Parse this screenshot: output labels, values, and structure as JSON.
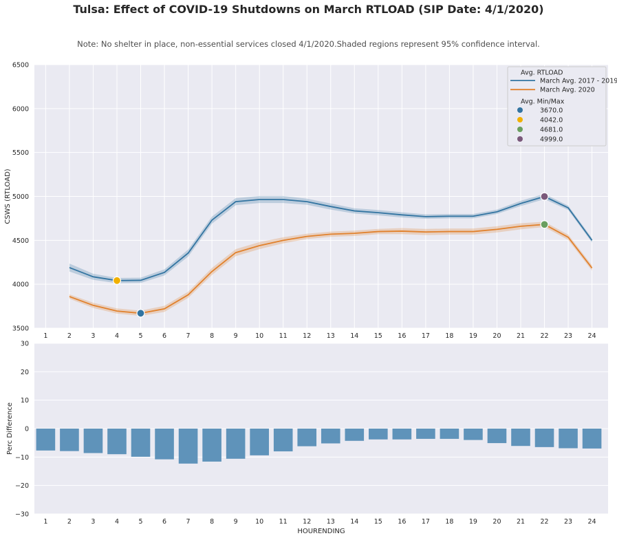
{
  "title": "Tulsa: Effect of COVID-19 Shutdowns on March RTLOAD (SIP Date: 4/1/2020)",
  "note": "Note: No shelter in place, non-essential services closed 4/1/2020.Shaded regions represent 95% confidence interval.",
  "colors": {
    "background": "#eaeaf2",
    "grid": "#ffffff",
    "series_2017_2019": "#3274a1",
    "series_2020": "#e1812c",
    "bars": "#5f93ba",
    "marker_3670": "#3274a1",
    "marker_4042": "#f0b000",
    "marker_4681": "#6a9f5f",
    "marker_4999": "#7a587a"
  },
  "chart_data": [
    {
      "type": "line",
      "title": "",
      "xlabel": "",
      "ylabel": "CSWS (RTLOAD)",
      "categories": [
        "1",
        "2",
        "3",
        "4",
        "5",
        "6",
        "7",
        "8",
        "9",
        "10",
        "11",
        "12",
        "13",
        "14",
        "15",
        "16",
        "17",
        "18",
        "19",
        "20",
        "21",
        "22",
        "23",
        "24"
      ],
      "ylim": [
        3500,
        6500
      ],
      "yticks": [
        3500,
        4000,
        4500,
        5000,
        5500,
        6000,
        6500
      ],
      "grid": true,
      "series": [
        {
          "name": "March Avg. 2017 - 2019",
          "x": [
            2,
            3,
            4,
            5,
            6,
            7,
            8,
            9,
            10,
            11,
            12,
            13,
            14,
            15,
            16,
            17,
            18,
            19,
            20,
            21,
            22,
            23,
            24
          ],
          "values": [
            4190,
            4085,
            4042,
            4045,
            4135,
            4355,
            4730,
            4940,
            4965,
            4965,
            4940,
            4885,
            4835,
            4815,
            4790,
            4770,
            4775,
            4775,
            4825,
            4920,
            4999,
            4870,
            4500
          ],
          "ci": [
            45,
            35,
            30,
            30,
            35,
            40,
            40,
            40,
            40,
            40,
            35,
            35,
            30,
            30,
            30,
            25,
            25,
            25,
            25,
            30,
            30,
            25,
            25
          ]
        },
        {
          "name": "March Avg. 2020",
          "x": [
            2,
            3,
            4,
            5,
            6,
            7,
            8,
            9,
            10,
            11,
            12,
            13,
            14,
            15,
            16,
            17,
            18,
            19,
            20,
            21,
            22,
            23,
            24
          ],
          "values": [
            3860,
            3760,
            3695,
            3670,
            3720,
            3880,
            4145,
            4360,
            4440,
            4500,
            4545,
            4570,
            4580,
            4600,
            4605,
            4595,
            4600,
            4600,
            4625,
            4660,
            4681,
            4535,
            4185
          ],
          "ci": [
            25,
            30,
            30,
            30,
            35,
            35,
            40,
            40,
            40,
            35,
            30,
            30,
            30,
            30,
            35,
            35,
            35,
            35,
            35,
            35,
            30,
            30,
            30
          ]
        }
      ],
      "legend": {
        "placement": "top-right",
        "line_title": "Avg. RTLOAD",
        "line_entries": [
          "March Avg. 2017 - 2019",
          "March Avg. 2020"
        ],
        "marker_title": "Avg. Min/Max",
        "marker_entries": [
          "3670.0",
          "4042.0",
          "4681.0",
          "4999.0"
        ]
      },
      "markers": [
        {
          "label": "3670.0",
          "x": 5,
          "y": 3670,
          "color_key": "marker_3670"
        },
        {
          "label": "4042.0",
          "x": 4,
          "y": 4042,
          "color_key": "marker_4042"
        },
        {
          "label": "4681.0",
          "x": 22,
          "y": 4681,
          "color_key": "marker_4681"
        },
        {
          "label": "4999.0",
          "x": 22,
          "y": 4999,
          "color_key": "marker_4999"
        }
      ]
    },
    {
      "type": "bar",
      "title": "",
      "xlabel": "HOURENDING",
      "ylabel": "Perc Difference",
      "categories": [
        "1",
        "2",
        "3",
        "4",
        "5",
        "6",
        "7",
        "8",
        "9",
        "10",
        "11",
        "12",
        "13",
        "14",
        "15",
        "16",
        "17",
        "18",
        "19",
        "20",
        "21",
        "22",
        "23",
        "24"
      ],
      "values": [
        -7.7,
        -7.9,
        -8.6,
        -9.0,
        -9.9,
        -10.8,
        -12.3,
        -11.6,
        -10.6,
        -9.4,
        -8.0,
        -6.2,
        -5.2,
        -4.3,
        -3.8,
        -3.8,
        -3.6,
        -3.6,
        -4.0,
        -5.1,
        -6.1,
        -6.5,
        -6.9,
        -7.0
      ],
      "ylim": [
        -30,
        30
      ],
      "yticks": [
        -30,
        -20,
        -10,
        0,
        10,
        20,
        30
      ],
      "ytick_labels": [
        "−30",
        "−20",
        "−10",
        "0",
        "10",
        "20",
        "30"
      ],
      "grid": true
    }
  ]
}
